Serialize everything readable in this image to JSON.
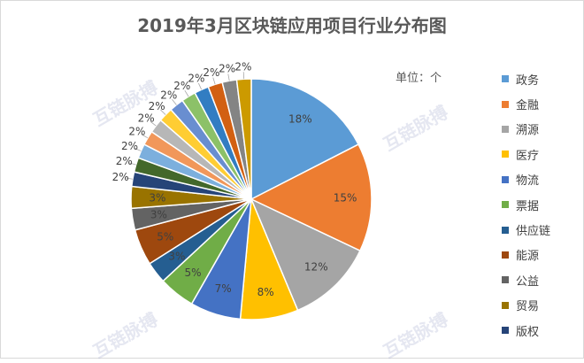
{
  "chart_data": {
    "type": "pie",
    "title": "2019年3月区块链应用项目行业分布图",
    "unit_label": "单位：个",
    "legend_position": "right",
    "slices": [
      {
        "name": "政务",
        "value": 18,
        "label": "18%",
        "color": "#5B9BD5"
      },
      {
        "name": "金融",
        "value": 15,
        "label": "15%",
        "color": "#ED7D31"
      },
      {
        "name": "溯源",
        "value": 12,
        "label": "12%",
        "color": "#A5A5A5"
      },
      {
        "name": "医疗",
        "value": 8,
        "label": "8%",
        "color": "#FFC000"
      },
      {
        "name": "物流",
        "value": 7,
        "label": "7%",
        "color": "#4472C4"
      },
      {
        "name": "票据",
        "value": 5,
        "label": "5%",
        "color": "#70AD47"
      },
      {
        "name": "供应链",
        "value": 3,
        "label": "3%",
        "color": "#255E91"
      },
      {
        "name": "能源",
        "value": 5,
        "label": "5%",
        "color": "#9E480E"
      },
      {
        "name": "公益",
        "value": 3,
        "label": "3%",
        "color": "#636363"
      },
      {
        "name": "贸易",
        "value": 3,
        "label": "3%",
        "color": "#997300"
      },
      {
        "name": "版权",
        "value": 2,
        "label": "2%",
        "color": "#264478"
      },
      {
        "name": "",
        "value": 2,
        "label": "2%",
        "color": "#43682B"
      },
      {
        "name": "",
        "value": 2,
        "label": "2%",
        "color": "#7CAFDD"
      },
      {
        "name": "",
        "value": 2,
        "label": "2%",
        "color": "#F1975A"
      },
      {
        "name": "",
        "value": 2,
        "label": "2%",
        "color": "#B7B7B7"
      },
      {
        "name": "",
        "value": 2,
        "label": "2%",
        "color": "#FFCD33"
      },
      {
        "name": "",
        "value": 2,
        "label": "2%",
        "color": "#698ED0"
      },
      {
        "name": "",
        "value": 2,
        "label": "2%",
        "color": "#8CC168"
      },
      {
        "name": "",
        "value": 2,
        "label": "2%",
        "color": "#327DC2"
      },
      {
        "name": "",
        "value": 2,
        "label": "2%",
        "color": "#D26012"
      },
      {
        "name": "",
        "value": 2,
        "label": "2%",
        "color": "#848484"
      },
      {
        "name": "",
        "value": 2,
        "label": "2%",
        "color": "#CC9A00"
      }
    ]
  },
  "watermark": "互链脉搏"
}
